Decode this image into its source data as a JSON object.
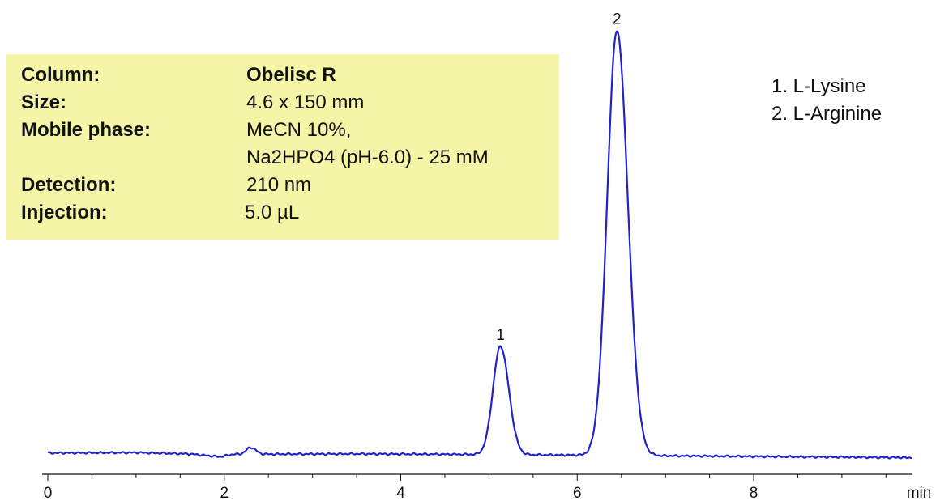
{
  "info": [
    {
      "label": "Column:",
      "value": "Obelisc R",
      "bold_value": true
    },
    {
      "label": "Size:",
      "value": "4.6 x 150 mm",
      "bold_value": false
    },
    {
      "label": "Mobile phase:",
      "value": "MeCN  10%,",
      "bold_value": false
    },
    {
      "label": "",
      "value": "Na2HPO4 (pH-6.0) -  25 mM",
      "bold_value": false
    },
    {
      "label": "Detection:",
      "value": "210 nm",
      "bold_value": false
    },
    {
      "label": "Injection:",
      "value": "5.0 µL",
      "bold_value": false
    }
  ],
  "legend": [
    "1.  L-Lysine",
    "2.  L-Arginine"
  ],
  "chart_data": {
    "type": "line",
    "xlabel": "min",
    "ylabel": "",
    "xlim": [
      0,
      9.8
    ],
    "ylim": [
      0,
      1
    ],
    "x_ticks": [
      0,
      2,
      4,
      6,
      8
    ],
    "grid": false,
    "line_color": "#2222cc",
    "baseline": 0.005,
    "drift": [
      {
        "x": 0.0,
        "y": 0.005
      },
      {
        "x": 1.0,
        "y": 0.006
      },
      {
        "x": 1.6,
        "y": 0.003
      },
      {
        "x": 1.95,
        "y": -0.004
      },
      {
        "x": 2.1,
        "y": 0.002
      },
      {
        "x": 3.5,
        "y": 0.003
      },
      {
        "x": 4.5,
        "y": 0.002
      },
      {
        "x": 6.0,
        "y": 0.0
      },
      {
        "x": 9.8,
        "y": -0.006
      }
    ],
    "peaks": [
      {
        "label": "1",
        "name": "L-Lysine",
        "rt": 5.13,
        "height": 0.255,
        "width": 0.085
      },
      {
        "label": "2",
        "name": "L-Arginine",
        "rt": 6.45,
        "height": 1.0,
        "width": 0.11
      },
      {
        "label": "",
        "name": "",
        "rt": 2.3,
        "height": 0.016,
        "width": 0.05
      }
    ]
  }
}
